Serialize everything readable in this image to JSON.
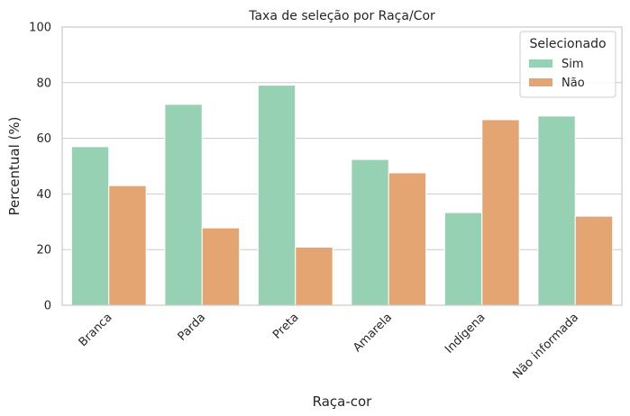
{
  "chart_data": {
    "type": "bar",
    "title": "Taxa de seleção por Raça/Cor",
    "xlabel": "Raça-cor",
    "ylabel": "Percentual (%)",
    "categories": [
      "Branca",
      "Parda",
      "Preta",
      "Amarela",
      "Indígena",
      "Não informada"
    ],
    "series": [
      {
        "name": "Sim",
        "color": "#97d1b4",
        "values": [
          57.0,
          72.2,
          79.1,
          52.4,
          33.3,
          68.0
        ]
      },
      {
        "name": "Não",
        "color": "#e5a572",
        "values": [
          43.0,
          27.8,
          20.9,
          47.6,
          66.7,
          32.0
        ]
      }
    ],
    "ylim": [
      0,
      100
    ],
    "yticks": [
      0,
      20,
      40,
      60,
      80,
      100
    ],
    "grid": "horizontal",
    "legend": {
      "title": "Selecionado",
      "placement": "top-right"
    }
  }
}
